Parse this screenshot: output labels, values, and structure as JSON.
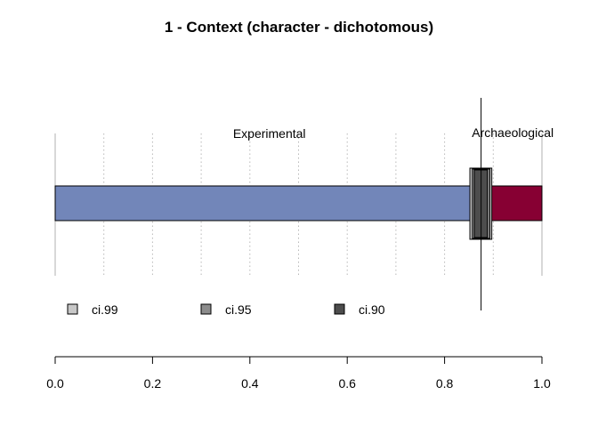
{
  "chart_data": {
    "type": "bar",
    "title": "1 - Context (character - dichotomous)",
    "xlim": [
      0,
      1
    ],
    "x_ticks": [
      "0.0",
      "0.2",
      "0.4",
      "0.6",
      "0.8",
      "1.0"
    ],
    "grid": "dotted vertical",
    "segments": [
      {
        "label": "Experimental",
        "start": 0.0,
        "end": 0.873,
        "color": "#7286b9"
      },
      {
        "label": "Archaeological",
        "start": 0.873,
        "end": 1.0,
        "color": "#870033"
      }
    ],
    "point_estimate": 0.875,
    "intervals": [
      {
        "name": "ci.99",
        "low": 0.852,
        "high": 0.897,
        "color": "#c8c8c8"
      },
      {
        "name": "ci.95",
        "low": 0.857,
        "high": 0.893,
        "color": "#8c8c8c"
      },
      {
        "name": "ci.90",
        "low": 0.861,
        "high": 0.888,
        "color": "#4d4d4d"
      }
    ],
    "legend_position": "bottom-left"
  }
}
